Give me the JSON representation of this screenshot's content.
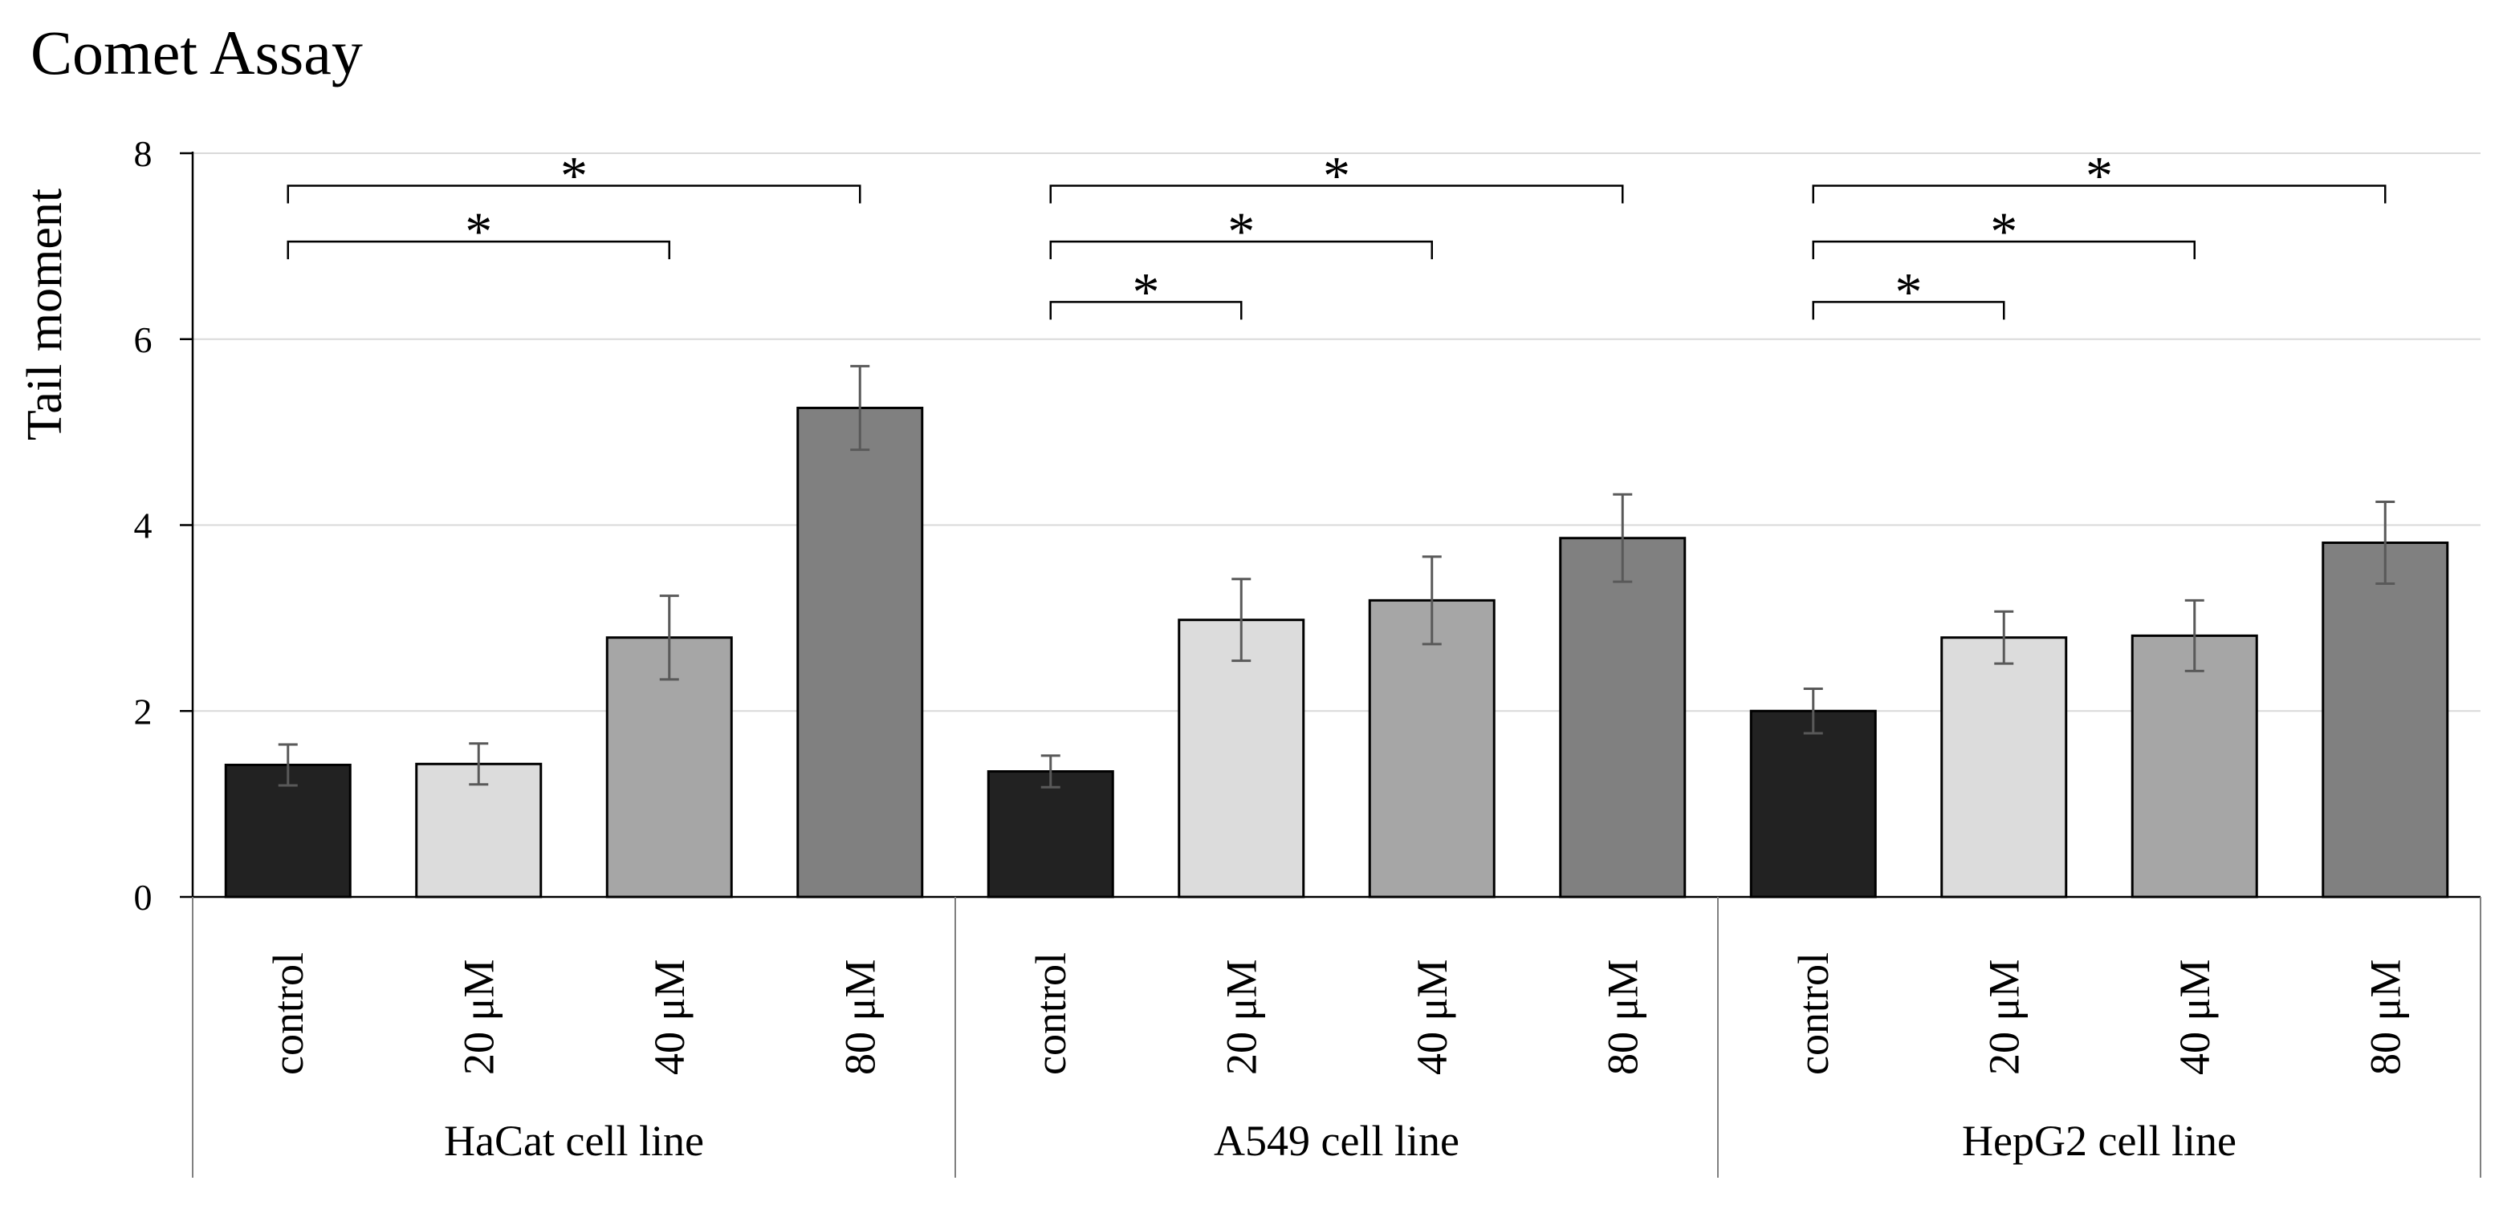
{
  "chart_data": {
    "type": "bar",
    "title": "Comet Assay",
    "ylabel": "Tail moment",
    "xlabel": "",
    "ylim": [
      0,
      8
    ],
    "yticks": [
      0,
      2,
      4,
      6,
      8
    ],
    "grid": true,
    "legend": "none",
    "groups": [
      {
        "label": "HaCat cell line",
        "categories": [
          "control",
          "20 μM",
          "40 μM",
          "80 μM"
        ],
        "values": [
          1.42,
          1.43,
          2.79,
          5.26
        ],
        "errors": [
          0.22,
          0.22,
          0.45,
          0.45
        ],
        "significance": [
          {
            "from": 0,
            "to": 3,
            "label": "*",
            "y": 7.65
          },
          {
            "from": 0,
            "to": 2,
            "label": "*",
            "y": 7.05
          }
        ]
      },
      {
        "label": "A549 cell line",
        "categories": [
          "control",
          "20 μM",
          "40 μM",
          "80 μM"
        ],
        "values": [
          1.35,
          2.98,
          3.19,
          3.86
        ],
        "errors": [
          0.17,
          0.44,
          0.47,
          0.47
        ],
        "significance": [
          {
            "from": 0,
            "to": 3,
            "label": "*",
            "y": 7.65
          },
          {
            "from": 0,
            "to": 2,
            "label": "*",
            "y": 7.05
          },
          {
            "from": 0,
            "to": 1,
            "label": "*",
            "y": 6.4
          }
        ]
      },
      {
        "label": "HepG2 cell line",
        "categories": [
          "control",
          "20 μM",
          "40 μM",
          "80 μM"
        ],
        "values": [
          2.0,
          2.79,
          2.81,
          3.81
        ],
        "errors": [
          0.24,
          0.28,
          0.38,
          0.44
        ],
        "significance": [
          {
            "from": 0,
            "to": 3,
            "label": "*",
            "y": 7.65
          },
          {
            "from": 0,
            "to": 2,
            "label": "*",
            "y": 7.05
          },
          {
            "from": 0,
            "to": 1,
            "label": "*",
            "y": 6.4
          }
        ]
      }
    ],
    "bar_colors": [
      "#222222",
      "#dcdcdc",
      "#a6a6a6",
      "#808080"
    ],
    "error_color": "#595959",
    "grid_color": "#d9d9d9"
  }
}
